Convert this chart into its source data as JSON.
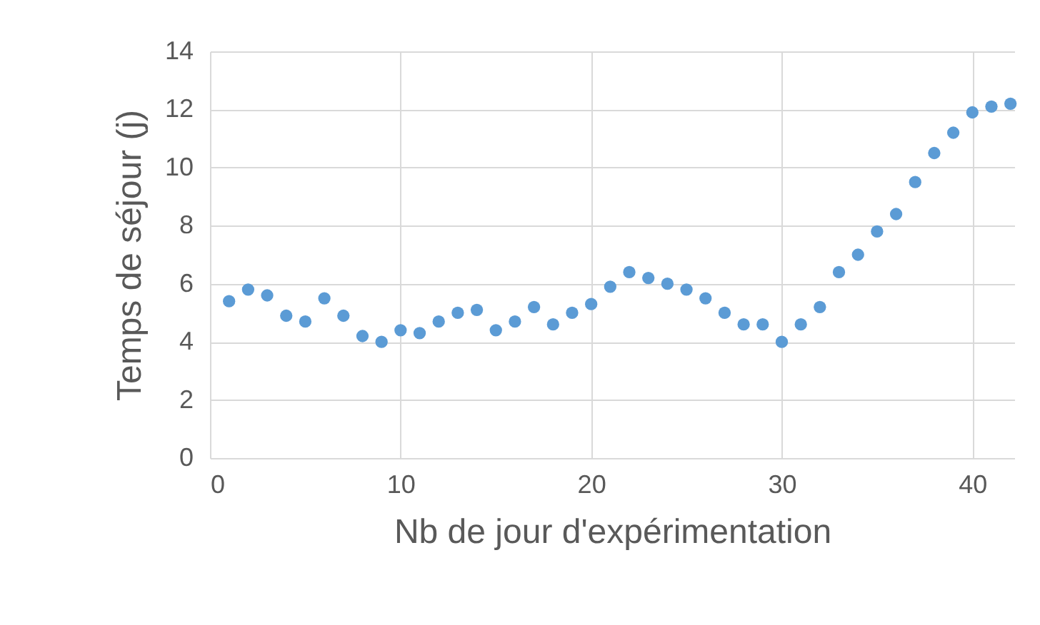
{
  "chart_data": {
    "type": "scatter",
    "xlabel": "Nb de jour d'expérimentation",
    "ylabel": "Temps de séjour (j)",
    "x": [
      1,
      2,
      3,
      4,
      5,
      6,
      7,
      8,
      9,
      10,
      11,
      12,
      13,
      14,
      15,
      16,
      17,
      18,
      19,
      20,
      21,
      22,
      23,
      24,
      25,
      26,
      27,
      28,
      29,
      30,
      31,
      32,
      33,
      34,
      35,
      36,
      37,
      38,
      39,
      40,
      41,
      42
    ],
    "series": [
      {
        "color": "#5b9bd5",
        "values": [
          5.4,
          5.8,
          5.6,
          4.9,
          4.7,
          5.5,
          4.9,
          4.2,
          4.0,
          4.4,
          4.3,
          4.7,
          5.0,
          5.1,
          4.4,
          4.7,
          5.2,
          4.6,
          5.0,
          5.3,
          5.9,
          6.4,
          6.2,
          6.0,
          5.8,
          5.5,
          5.0,
          4.6,
          4.6,
          4.0,
          4.6,
          5.2,
          6.4,
          7.0,
          7.8,
          8.4,
          9.5,
          10.5,
          11.2,
          11.9,
          12.1,
          12.2
        ]
      }
    ],
    "xlim": [
      0,
      42.2
    ],
    "ylim": [
      0,
      14
    ],
    "xticks": [
      0,
      10,
      20,
      30,
      40
    ],
    "yticks": [
      0,
      2,
      4,
      6,
      8,
      10,
      12,
      14
    ],
    "grid": true,
    "marker": "circle",
    "legend": false
  }
}
